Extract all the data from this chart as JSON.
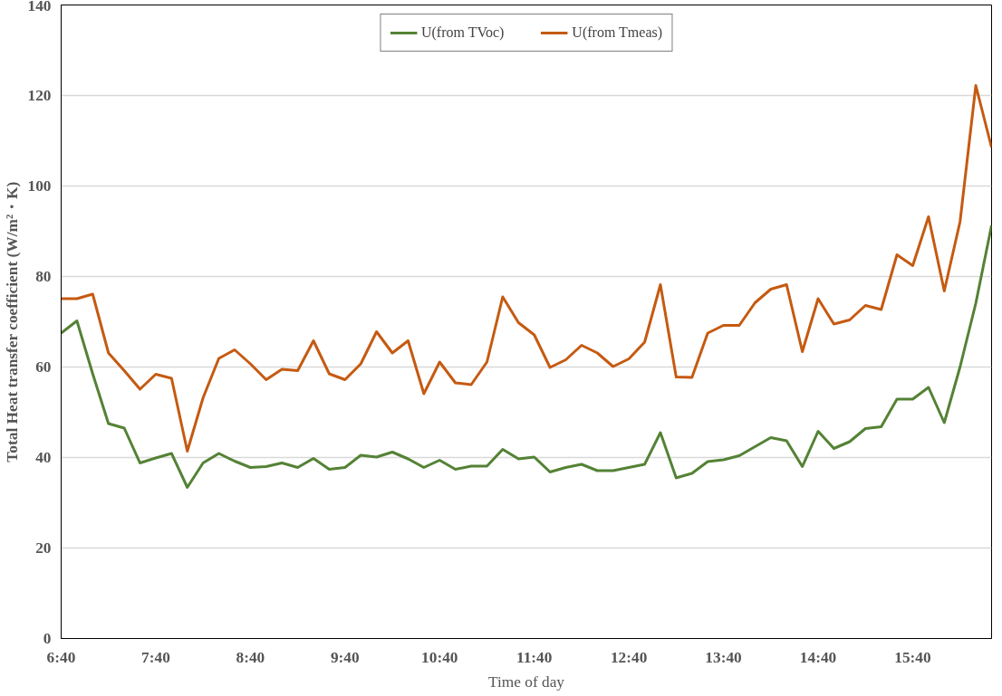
{
  "chart_data": {
    "type": "line",
    "xlabel": "Time of day",
    "ylabel": "Total Heat transfer coefficient (W/m²・K)",
    "categories": [
      "6:40",
      null,
      null,
      null,
      null,
      null,
      "7:40",
      null,
      null,
      null,
      null,
      null,
      "8:40",
      null,
      null,
      null,
      null,
      null,
      "9:40",
      null,
      null,
      null,
      null,
      null,
      "10:40",
      null,
      null,
      null,
      null,
      null,
      "11:40",
      null,
      null,
      null,
      null,
      null,
      "12:40",
      null,
      null,
      null,
      null,
      null,
      "13:40",
      null,
      null,
      null,
      null,
      null,
      "14:40",
      null,
      null,
      null,
      null,
      null,
      "15:40",
      null,
      null,
      null,
      null,
      null
    ],
    "series": [
      {
        "name": "U(from TVoc)",
        "color": "#548235",
        "values": [
          67.5,
          70.2,
          58.5,
          47.5,
          46.5,
          38.8,
          39.9,
          40.9,
          33.4,
          38.8,
          40.9,
          39.2,
          37.8,
          38.0,
          38.8,
          37.8,
          39.8,
          37.4,
          37.8,
          40.5,
          40.1,
          41.2,
          39.7,
          37.8,
          39.4,
          37.4,
          38.1,
          38.1,
          41.8,
          39.7,
          40.1,
          36.8,
          37.8,
          38.5,
          37.1,
          37.1,
          37.8,
          38.5,
          45.5,
          35.5,
          36.5,
          39.1,
          39.5,
          40.4,
          42.4,
          44.4,
          43.7,
          38.0,
          45.8,
          42.0,
          43.5,
          46.4,
          46.8,
          52.9,
          52.9,
          55.5,
          47.7,
          60.0,
          74.1,
          91.3
        ]
      },
      {
        "name": "U(from Tmeas)",
        "color": "#c55a11",
        "values": [
          75.1,
          75.1,
          76.1,
          63.1,
          59.2,
          55.1,
          58.4,
          57.5,
          41.4,
          53.2,
          61.9,
          63.8,
          60.7,
          57.2,
          59.5,
          59.2,
          65.8,
          58.5,
          57.2,
          60.7,
          67.8,
          63.1,
          65.8,
          54.1,
          61.1,
          56.5,
          56.1,
          61.1,
          75.5,
          69.8,
          67.1,
          59.9,
          61.6,
          64.8,
          63.1,
          60.1,
          61.8,
          65.5,
          78.2,
          57.8,
          57.7,
          67.5,
          69.2,
          69.2,
          74.2,
          77.2,
          78.2,
          63.4,
          75.1,
          69.5,
          70.4,
          73.6,
          72.7,
          84.8,
          82.4,
          93.2,
          76.8,
          92.1,
          122.2,
          108.5
        ]
      }
    ],
    "ylim": [
      0,
      140
    ],
    "yticks": [
      0,
      20,
      40,
      60,
      80,
      100,
      120,
      140
    ],
    "grid": "y",
    "legend": "top",
    "marker": "none",
    "line_style": "solid"
  }
}
